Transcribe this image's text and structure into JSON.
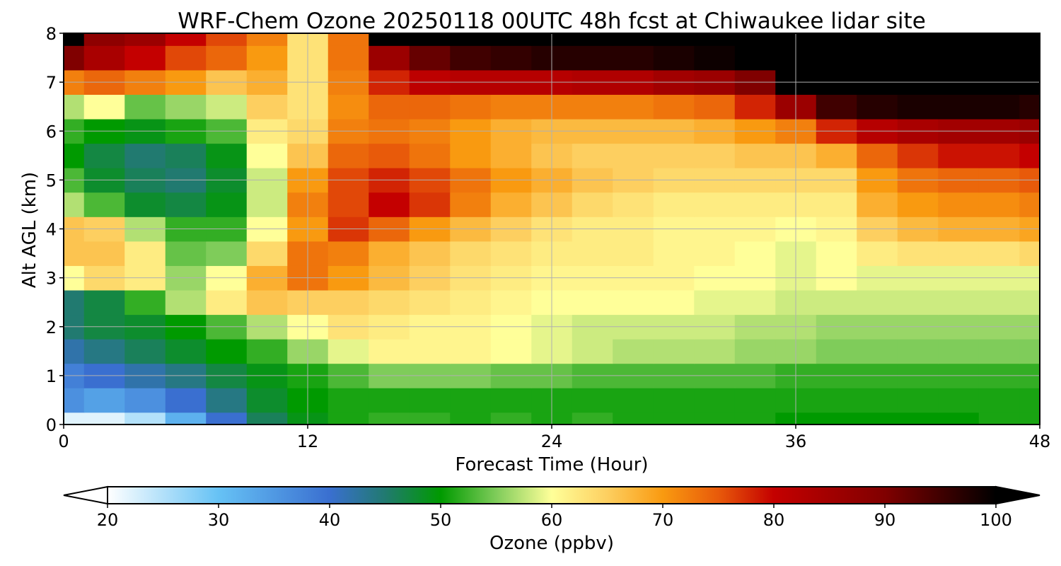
{
  "chart_data": {
    "type": "heatmap",
    "title": "WRF-Chem Ozone  20250118 00UTC 48h fcst at Chiwaukee lidar site",
    "xlabel": "Forecast Time (Hour)",
    "ylabel": "Alt AGL (km)",
    "xlim": [
      0,
      48
    ],
    "ylim": [
      0,
      8
    ],
    "xticks": [
      "0",
      "12",
      "24",
      "36",
      "48"
    ],
    "yticks": [
      "0",
      "1",
      "2",
      "3",
      "4",
      "5",
      "6",
      "7",
      "8"
    ],
    "grid": true,
    "colorbar": {
      "label": "Ozone  (ppbv)",
      "range": [
        20,
        100
      ],
      "ticks": [
        "20",
        "30",
        "40",
        "50",
        "60",
        "70",
        "80",
        "90",
        "100"
      ],
      "extend": "both",
      "colors": [
        {
          "v": 20,
          "c": "#ffffff"
        },
        {
          "v": 30,
          "c": "#66c2f5"
        },
        {
          "v": 40,
          "c": "#3a6fd0"
        },
        {
          "v": 45,
          "c": "#217a70"
        },
        {
          "v": 50,
          "c": "#009a00"
        },
        {
          "v": 55,
          "c": "#7fcc5a"
        },
        {
          "v": 60,
          "c": "#ffff99"
        },
        {
          "v": 65,
          "c": "#fdcf60"
        },
        {
          "v": 70,
          "c": "#f99a10"
        },
        {
          "v": 75,
          "c": "#e85a0a"
        },
        {
          "v": 80,
          "c": "#c40000"
        },
        {
          "v": 90,
          "c": "#800000"
        },
        {
          "v": 100,
          "c": "#000000"
        }
      ]
    },
    "x": [
      0,
      2,
      4,
      6,
      8,
      10,
      12,
      14,
      16,
      18,
      20,
      22,
      24,
      26,
      28,
      30,
      32,
      34,
      36,
      38,
      40,
      42,
      44,
      46,
      48
    ],
    "y": [
      0,
      0.5,
      1,
      1.5,
      2,
      2.5,
      3,
      3.5,
      4,
      4.5,
      5,
      5.5,
      6,
      6.5,
      7,
      7.5,
      8
    ],
    "values": [
      [
        22,
        22,
        25,
        32,
        40,
        46,
        49,
        51,
        52,
        52,
        51,
        52,
        51,
        52,
        51,
        51,
        51,
        51,
        50,
        50,
        50,
        50,
        50,
        51,
        51
      ],
      [
        36,
        34,
        36,
        40,
        44,
        48,
        50,
        51,
        51,
        51,
        51,
        51,
        51,
        51,
        51,
        51,
        51,
        51,
        51,
        51,
        51,
        51,
        51,
        51,
        51
      ],
      [
        38,
        40,
        42,
        44,
        47,
        49,
        51,
        53,
        55,
        55,
        55,
        54,
        54,
        53,
        53,
        53,
        53,
        53,
        52,
        52,
        52,
        52,
        52,
        52,
        52
      ],
      [
        42,
        44,
        46,
        48,
        50,
        52,
        56,
        59,
        61,
        61,
        61,
        60,
        59,
        58,
        57,
        57,
        57,
        56,
        56,
        55,
        55,
        55,
        55,
        55,
        55
      ],
      [
        45,
        47,
        48,
        50,
        53,
        57,
        60,
        63,
        62,
        61,
        61,
        60,
        59,
        58,
        58,
        58,
        58,
        57,
        57,
        56,
        56,
        56,
        56,
        56,
        56
      ],
      [
        45,
        47,
        52,
        57,
        62,
        66,
        65,
        65,
        64,
        63,
        62,
        61,
        60,
        60,
        60,
        60,
        59,
        59,
        58,
        58,
        58,
        58,
        58,
        58,
        58
      ],
      [
        60,
        64,
        62,
        56,
        60,
        68,
        73,
        70,
        67,
        65,
        63,
        62,
        61,
        61,
        61,
        61,
        60,
        60,
        59,
        60,
        59,
        59,
        59,
        59,
        59
      ],
      [
        66,
        66,
        62,
        54,
        55,
        64,
        73,
        72,
        68,
        66,
        64,
        63,
        62,
        62,
        62,
        61,
        61,
        60,
        59,
        60,
        62,
        63,
        63,
        63,
        64
      ],
      [
        66,
        65,
        57,
        52,
        52,
        60,
        70,
        77,
        74,
        70,
        67,
        65,
        63,
        62,
        62,
        61,
        61,
        61,
        60,
        61,
        65,
        67,
        68,
        68,
        69
      ],
      [
        57,
        53,
        48,
        47,
        49,
        58,
        72,
        76,
        80,
        77,
        72,
        68,
        66,
        64,
        63,
        62,
        62,
        62,
        62,
        62,
        68,
        70,
        71,
        71,
        72
      ],
      [
        53,
        48,
        46,
        45,
        48,
        58,
        70,
        76,
        78,
        76,
        73,
        70,
        68,
        66,
        65,
        64,
        64,
        64,
        64,
        64,
        70,
        73,
        74,
        74,
        75
      ],
      [
        50,
        47,
        45,
        46,
        49,
        60,
        66,
        74,
        75,
        73,
        70,
        68,
        66,
        65,
        65,
        65,
        65,
        66,
        66,
        68,
        74,
        77,
        79,
        79,
        80
      ],
      [
        52,
        50,
        49,
        51,
        53,
        62,
        64,
        72,
        73,
        72,
        70,
        68,
        67,
        67,
        67,
        67,
        68,
        70,
        72,
        78,
        82,
        84,
        85,
        85,
        86
      ],
      [
        57,
        60,
        54,
        56,
        58,
        65,
        63,
        71,
        74,
        74,
        73,
        72,
        72,
        72,
        72,
        73,
        74,
        78,
        86,
        95,
        97,
        98,
        98,
        98,
        97
      ],
      [
        72,
        74,
        72,
        70,
        66,
        68,
        63,
        72,
        78,
        81,
        82,
        82,
        82,
        83,
        83,
        85,
        86,
        90,
        100,
        100,
        100,
        100,
        100,
        100,
        100
      ],
      [
        90,
        84,
        80,
        76,
        74,
        70,
        63,
        73,
        86,
        92,
        95,
        96,
        97,
        97,
        97,
        98,
        99,
        100,
        100,
        100,
        100,
        100,
        100,
        100,
        100
      ],
      [
        100,
        88,
        86,
        80,
        76,
        72,
        63,
        73,
        100,
        100,
        100,
        100,
        100,
        100,
        100,
        100,
        100,
        100,
        100,
        100,
        100,
        100,
        100,
        100,
        100
      ]
    ]
  }
}
